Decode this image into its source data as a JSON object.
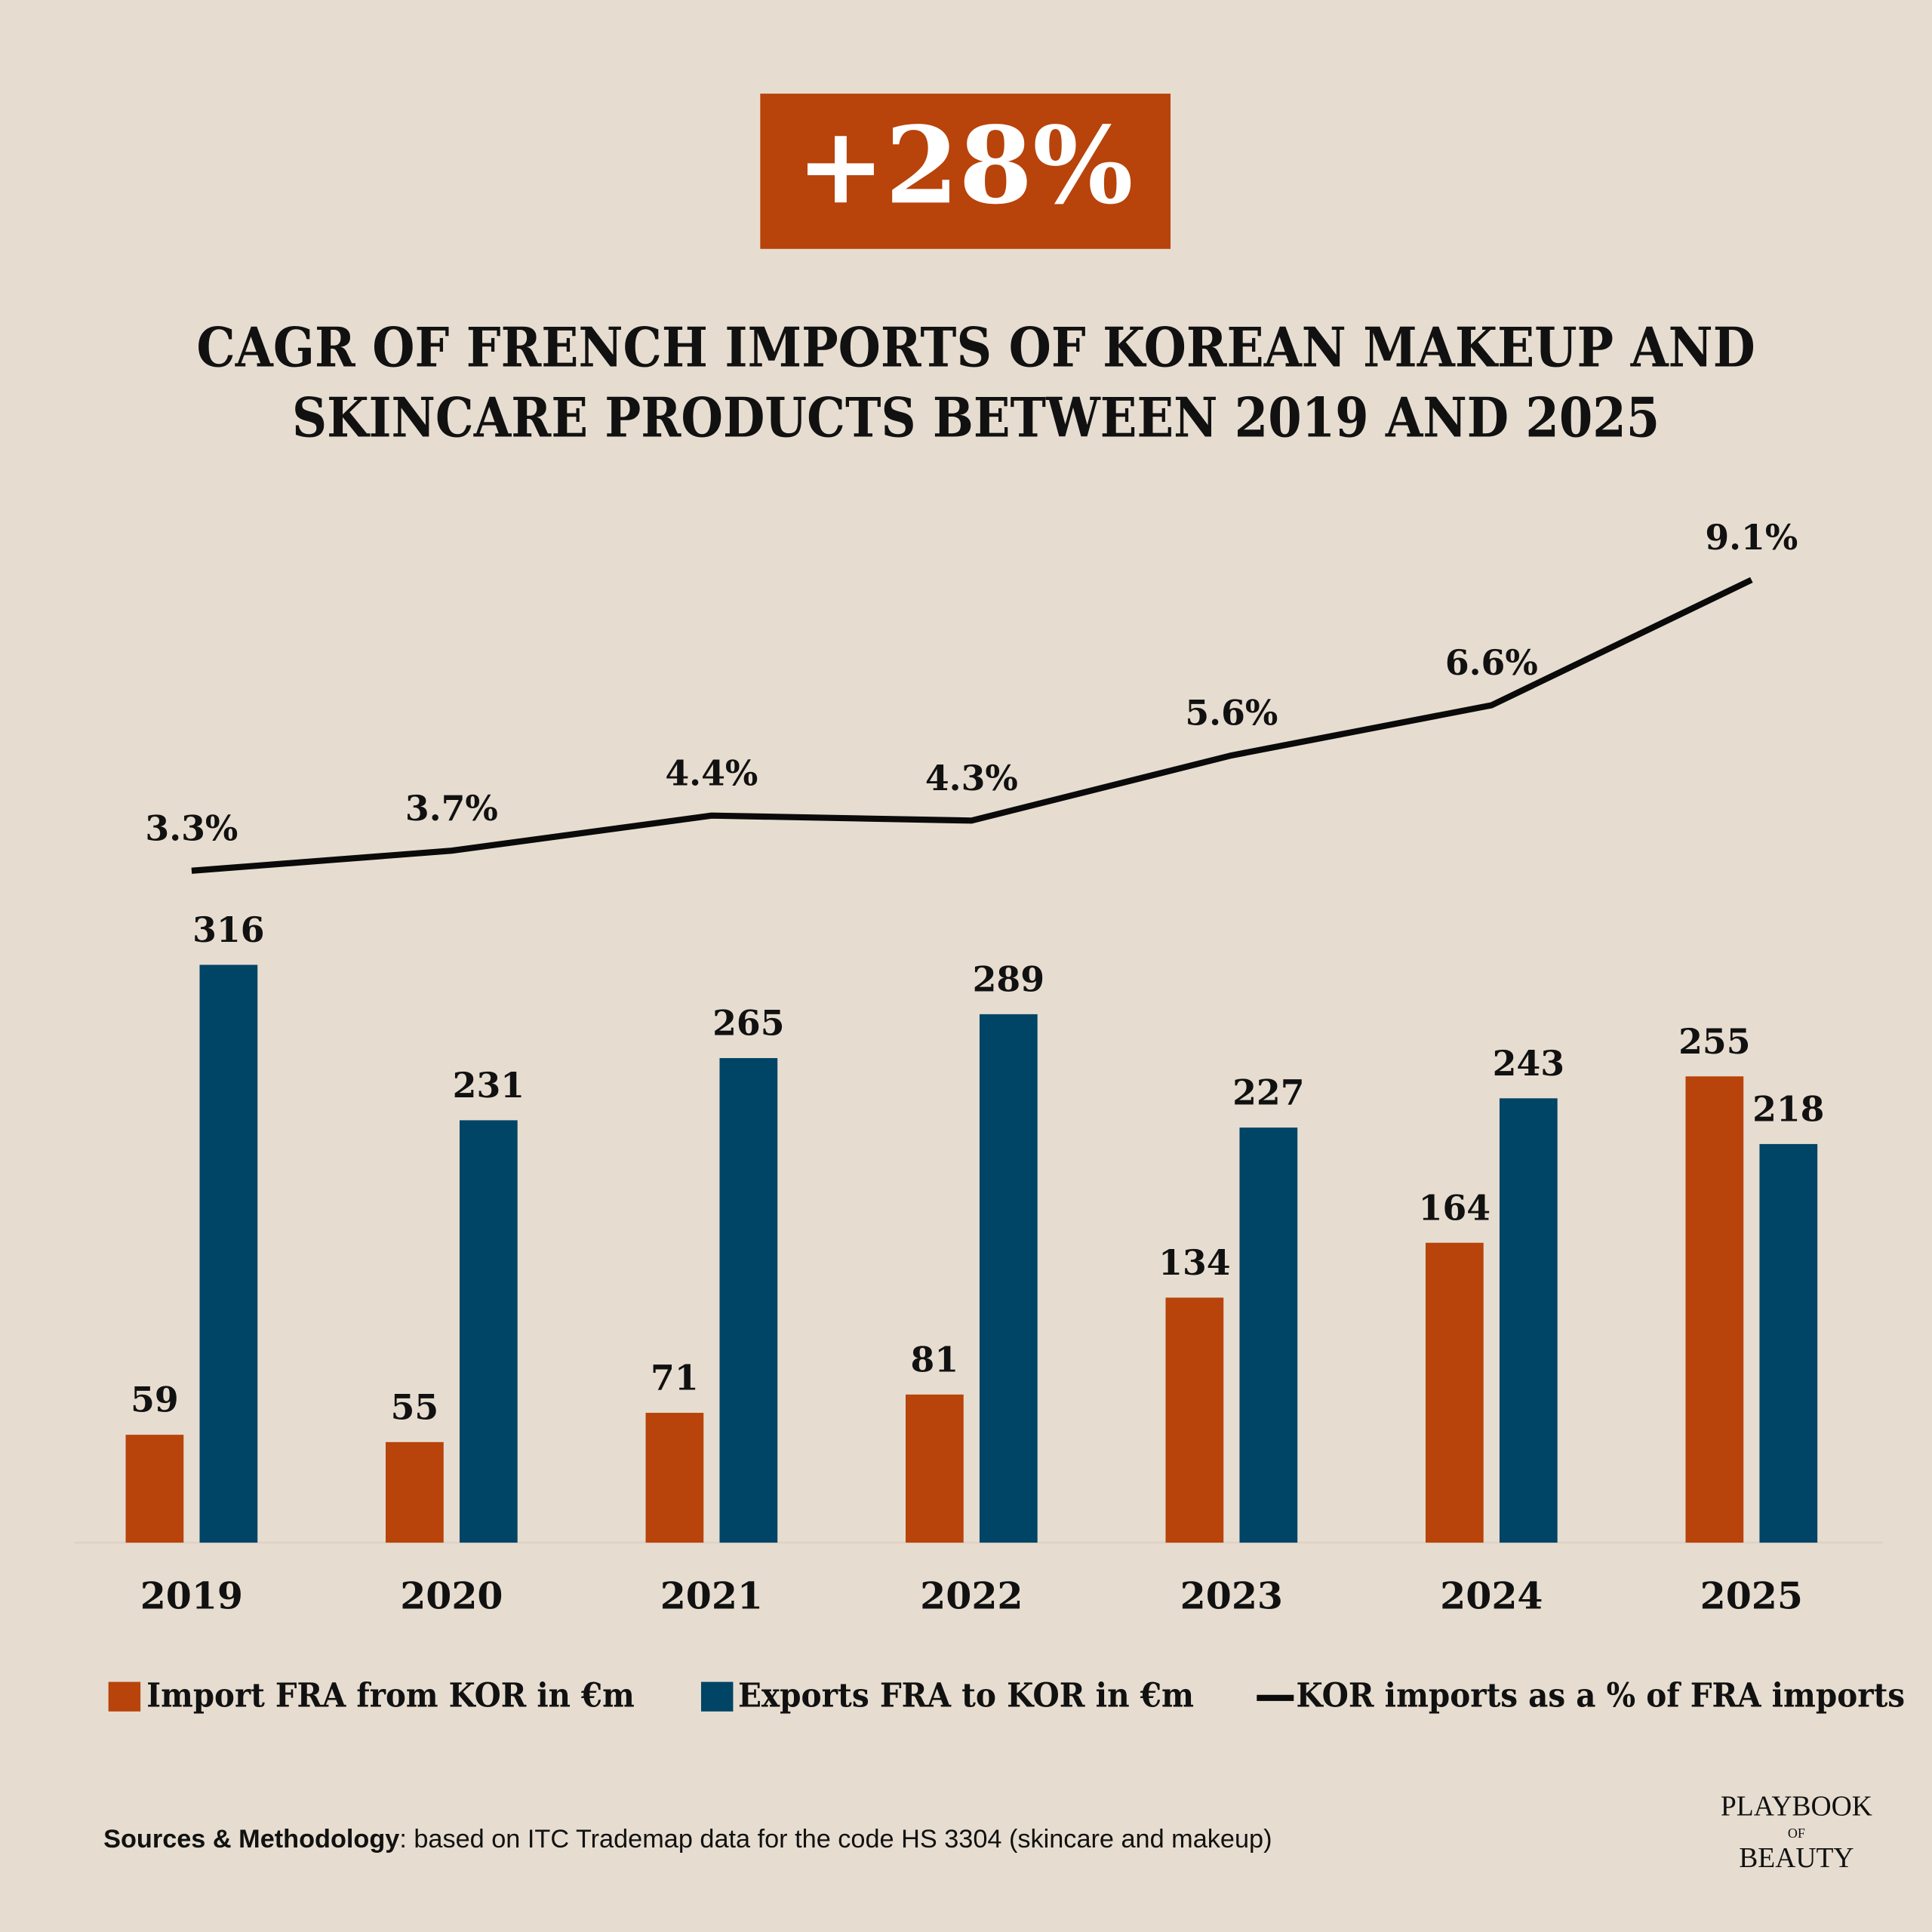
{
  "headline": "+28%",
  "chart_data": {
    "type": "bar",
    "title": [
      "CAGR OF FRENCH IMPORTS OF KOREAN MAKEUP AND",
      "SKINCARE PRODUCTS BETWEEN 2019 AND 2025"
    ],
    "categories": [
      "2019",
      "2020",
      "2021",
      "2022",
      "2023",
      "2024",
      "2025"
    ],
    "series": [
      {
        "name": "Import FRA from KOR in €m",
        "color": "#b8430b",
        "values": [
          59,
          55,
          71,
          81,
          134,
          164,
          255
        ]
      },
      {
        "name": "Exports FRA to KOR in €m",
        "color": "#004466",
        "values": [
          316,
          231,
          265,
          289,
          227,
          243,
          218
        ]
      },
      {
        "name": "KOR imports as a % of FRA imports",
        "color": "#0a0a0a",
        "type": "line",
        "axis": "y2",
        "values": [
          3.3,
          3.7,
          4.4,
          4.3,
          5.6,
          6.6,
          9.1
        ],
        "value_labels": [
          "3.3%",
          "3.7%",
          "4.4%",
          "4.3%",
          "5.6%",
          "6.6%",
          "9.1%"
        ]
      }
    ],
    "ylim": [
      0,
      350
    ],
    "y2lim": [
      0,
      10
    ],
    "legend": "bottom"
  },
  "source_label": "Sources & Methodology",
  "source_text": ": based on ITC Trademap data for the code HS 3304 (skincare and makeup)",
  "logo": [
    "PLAYBOOK",
    "OF",
    "BEAUTY"
  ]
}
